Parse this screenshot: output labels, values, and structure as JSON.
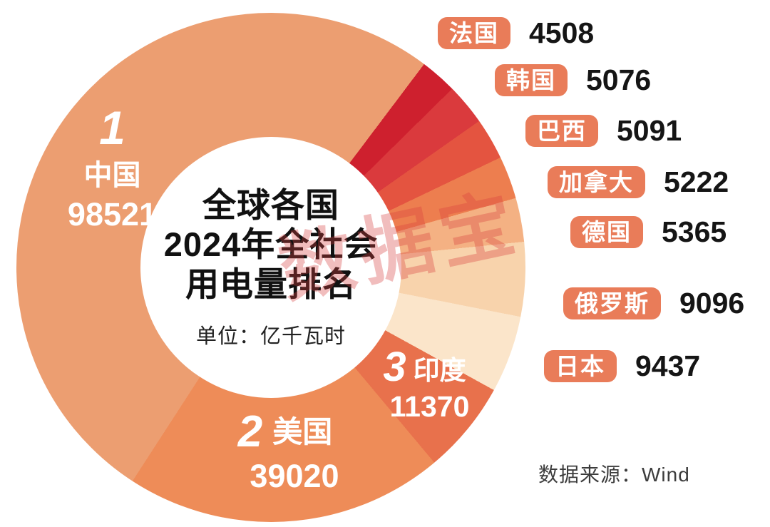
{
  "chart_data": {
    "type": "pie",
    "title_lines": [
      "全球各国",
      "2024年全社会",
      "用电量排名"
    ],
    "unit_label": "单位：亿千瓦时",
    "source_label": "数据来源：Wind",
    "legend_position": "right",
    "start_angle_deg": 37,
    "donut": true,
    "segments": [
      {
        "name": "法国",
        "value": 4508,
        "color": "#CE202E"
      },
      {
        "name": "韩国",
        "value": 5076,
        "color": "#DA3A3D"
      },
      {
        "name": "巴西",
        "value": 5091,
        "color": "#E45440"
      },
      {
        "name": "加拿大",
        "value": 5222,
        "color": "#ED7E4F"
      },
      {
        "name": "德国",
        "value": 5365,
        "color": "#F4B183"
      },
      {
        "name": "俄罗斯",
        "value": 9096,
        "color": "#F8D3AC"
      },
      {
        "name": "日本",
        "value": 9437,
        "color": "#FBE5CA"
      },
      {
        "name": "印度",
        "value": 11370,
        "color": "#E8714C"
      },
      {
        "name": "美国",
        "value": 39020,
        "color": "#EE8C58"
      },
      {
        "name": "中国",
        "value": 98521,
        "color": "#EC9E71"
      }
    ]
  },
  "donut_labels": [
    {
      "rank": "1",
      "name": "中国",
      "value": "98521"
    },
    {
      "rank": "2",
      "name": "美国",
      "value": "39020"
    },
    {
      "rank": "3",
      "name": "印度",
      "value": "11370"
    }
  ],
  "legend_items": [
    {
      "name": "法国",
      "value": "4508"
    },
    {
      "name": "韩国",
      "value": "5076"
    },
    {
      "name": "巴西",
      "value": "5091"
    },
    {
      "name": "加拿大",
      "value": "5222"
    },
    {
      "name": "德国",
      "value": "5365"
    },
    {
      "name": "俄罗斯",
      "value": "9096"
    },
    {
      "name": "日本",
      "value": "9437"
    }
  ],
  "source": {
    "label": "数据来源：Wind"
  },
  "watermark": {
    "text": "数据宝",
    "color": "#D94040"
  },
  "ui": {
    "badge_color": "#E97C59"
  }
}
